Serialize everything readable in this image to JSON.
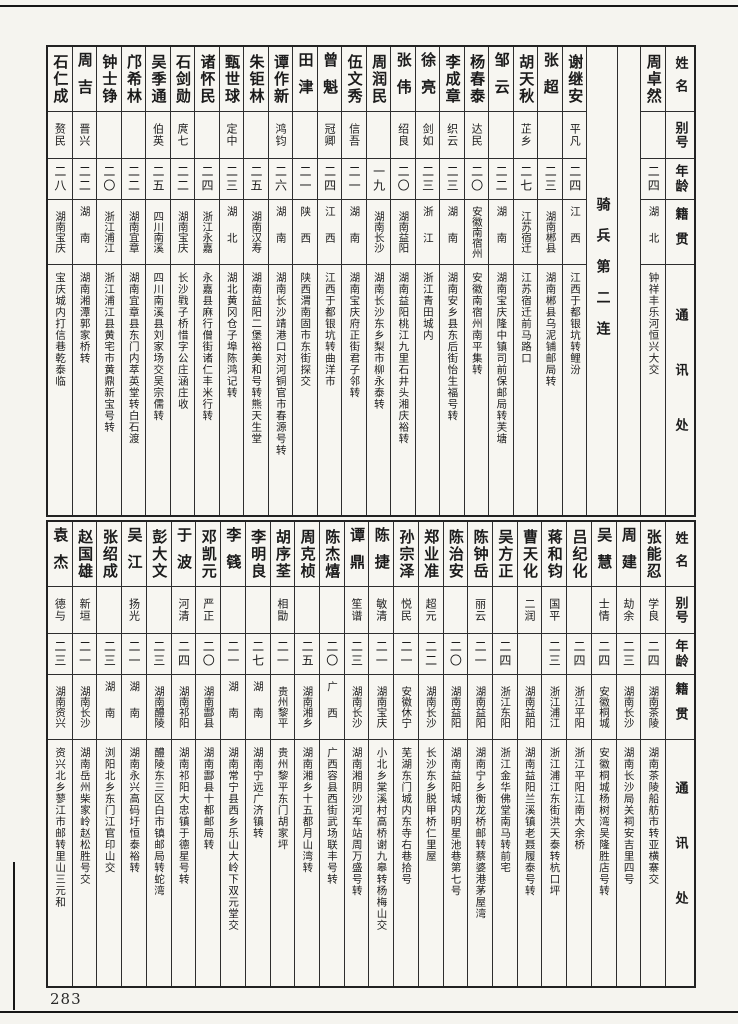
{
  "page": {
    "number": "283"
  },
  "headers": {
    "name": "姓名",
    "alias": "别号",
    "age": "年龄",
    "native": "籍贯",
    "address": "通讯处"
  },
  "section": {
    "label": "骑兵第二连"
  },
  "top_band": {
    "people": [
      {
        "name": "周卓然",
        "alias": "",
        "age": "二四",
        "native": "湖北",
        "address": "钟祥丰乐河恒兴大交"
      },
      {
        "name": "谢继安",
        "alias": "平凡",
        "age": "二四",
        "native": "江西",
        "address": "江西于都银坑转鲤汾"
      },
      {
        "name": "张超",
        "alias": "",
        "age": "二三",
        "native": "湖南郴县",
        "address": "湖南郴县乌泥铺邮局转"
      },
      {
        "name": "胡天秋",
        "alias": "芷乡",
        "age": "二七",
        "native": "江苏宿迁",
        "address": "江苏宿迁前马路口"
      },
      {
        "name": "邹云",
        "alias": "",
        "age": "二二",
        "native": "湖南",
        "address": "湖南宝庆隆中镇司前保邮局转芙塘"
      },
      {
        "name": "杨春泰",
        "alias": "达民",
        "age": "二〇",
        "native": "安徽南宿州",
        "address": "安徽南宿州南平集转"
      },
      {
        "name": "李成章",
        "alias": "织云",
        "age": "二三",
        "native": "湖南",
        "address": "湖南安乡县东后街怡生福号转"
      },
      {
        "name": "徐亮",
        "alias": "剑如",
        "age": "二三",
        "native": "浙江",
        "address": "浙江青田城内"
      },
      {
        "name": "张伟",
        "alias": "绍良",
        "age": "二〇",
        "native": "湖南益阳",
        "address": "湖南益阳桃江九里石井头湘庆裕转"
      },
      {
        "name": "周润民",
        "alias": "",
        "age": "一九",
        "native": "湖南长沙",
        "address": "湖南长沙东乡梨市柳永泰转"
      },
      {
        "name": "伍文秀",
        "alias": "信吾",
        "age": "二一",
        "native": "湖南",
        "address": "湖南宝庆府正街君子邻转"
      },
      {
        "name": "曾魁",
        "alias": "冠卿",
        "age": "二四",
        "native": "江西",
        "address": "江西于都银坑转曲洋市"
      },
      {
        "name": "田津",
        "alias": "",
        "age": "二一",
        "native": "陕西",
        "address": "陕西渭南固市东街探交"
      },
      {
        "name": "谭作新",
        "alias": "鸿钧",
        "age": "二六",
        "native": "湖南",
        "address": "湖南长沙靖港口对河铜官市春源号转"
      },
      {
        "name": "朱钜林",
        "alias": "",
        "age": "二五",
        "native": "湖南汉寿",
        "address": "湖南益阳二堡裕美和号转熊天生堂"
      },
      {
        "name": "甄世球",
        "alias": "定中",
        "age": "二三",
        "native": "湖北",
        "address": "湖北黄冈仓子埠陈鸿记转"
      },
      {
        "name": "诸怀民",
        "alias": "",
        "age": "二四",
        "native": "浙江永嘉",
        "address": "永嘉县麻行僧街诸仁丰米行转"
      },
      {
        "name": "石剑勋",
        "alias": "庹七",
        "age": "二二",
        "native": "湖南宝庆",
        "address": "长沙戥子桥惜字公庄涵庄收"
      },
      {
        "name": "吴季通",
        "alias": "伯英",
        "age": "二五",
        "native": "四川南溪",
        "address": "四川南溪县刘家场交吴宗儒转"
      },
      {
        "name": "邝希林",
        "alias": "",
        "age": "二二",
        "native": "湖南宜章",
        "address": "湖南宜章县东门内萃英堂转白石渡"
      },
      {
        "name": "钟士铮",
        "alias": "",
        "age": "二〇",
        "native": "浙江浦江",
        "address": "浙江浦江县黄宅市黄鼎新宝号转"
      },
      {
        "name": "周吉",
        "alias": "晋兴",
        "age": "二二",
        "native": "湖南",
        "address": "湖南湘潭郭家桥转"
      },
      {
        "name": "石仁成",
        "alias": "赘民",
        "age": "二八",
        "native": "湖南宝庆",
        "address": "宝庆城内打信巷乾泰临"
      }
    ]
  },
  "bottom_band": {
    "people": [
      {
        "name": "张能忍",
        "alias": "学良",
        "age": "二四",
        "native": "湖南茶陵",
        "address": "湖南茶陵船舫市转亚横寨交"
      },
      {
        "name": "周建",
        "alias": "劫余",
        "age": "二三",
        "native": "湖南长沙",
        "address": "湖南长沙局关祠安吉里四号"
      },
      {
        "name": "吴慧",
        "alias": "士情",
        "age": "二四",
        "native": "安徽桐城",
        "address": "安徽桐城杨树湾吴隆胜店号转"
      },
      {
        "name": "吕纪化",
        "alias": "",
        "age": "二四",
        "native": "浙江平阳",
        "address": "浙江平阳江南大余桥"
      },
      {
        "name": "蒋和钧",
        "alias": "国平",
        "age": "二三",
        "native": "浙江浦江",
        "address": "浙江浦江东街洪天泰转杭口坪"
      },
      {
        "name": "曹天化",
        "alias": "二润",
        "age": "",
        "native": "湖南益阳",
        "address": "湖南益阳兰溪镇老聂履泰号转"
      },
      {
        "name": "吴方正",
        "alias": "",
        "age": "二四",
        "native": "浙江东阳",
        "address": "浙江金华佛堂南马转前宅"
      },
      {
        "name": "陈钟岳",
        "alias": "丽云",
        "age": "二一",
        "native": "湖南益阳",
        "address": "湖南宁乡衡龙桥邮转蔡婆港茅屋湾"
      },
      {
        "name": "陈治安",
        "alias": "",
        "age": "二〇",
        "native": "湖南益阳",
        "address": "湖南益阳城内明星池巷第七号"
      },
      {
        "name": "郑业准",
        "alias": "超元",
        "age": "二二",
        "native": "湖南长沙",
        "address": "长沙东乡脱甲桥仁里屋"
      },
      {
        "name": "孙宗泽",
        "alias": "悦民",
        "age": "二一",
        "native": "安徽休宁",
        "address": "芜湖东门城内东寺右巷拾号"
      },
      {
        "name": "陈捷",
        "alias": "敏清",
        "age": "二一",
        "native": "湖南宝庆",
        "address": "小北乡棠溪村高桥谢九皋转杨梅山交"
      },
      {
        "name": "谭鼎",
        "alias": "笙谱",
        "age": "二三",
        "native": "湖南长沙",
        "address": "湖南湘阴沙河车站周万盛号转"
      },
      {
        "name": "陈杰熺",
        "alias": "",
        "age": "二〇",
        "native": "广西",
        "address": "广西容县西街武场联丰号转"
      },
      {
        "name": "周克桢",
        "alias": "",
        "age": "二五",
        "native": "湖南湘乡",
        "address": "湖南湘乡十五都月山湾转"
      },
      {
        "name": "胡序荃",
        "alias": "相勖",
        "age": "二一",
        "native": "贵州黎平",
        "address": "贵州黎平东门胡家坪"
      },
      {
        "name": "李明良",
        "alias": "",
        "age": "二七",
        "native": "湖南",
        "address": "湖南宁远广济镇转"
      },
      {
        "name": "李篯",
        "alias": "",
        "age": "二一",
        "native": "湖南",
        "address": "湖南常宁县西乡乐山大岭下双元堂交"
      },
      {
        "name": "邓凯元",
        "alias": "严正",
        "age": "二〇",
        "native": "湖南酃县",
        "address": "湖南酃县十都邮局转"
      },
      {
        "name": "于波",
        "alias": "河清",
        "age": "二四",
        "native": "湖南祁阳",
        "address": "湖南祁阳大忠镇于德星号转"
      },
      {
        "name": "彭大文",
        "alias": "",
        "age": "二三",
        "native": "湖南醴陵",
        "address": "醴陵东三区白市镇邮局转蛇湾"
      },
      {
        "name": "吴江",
        "alias": "扬光",
        "age": "二一",
        "native": "湖南",
        "address": "湖南永兴高码圩恒泰裕转"
      },
      {
        "name": "张绍成",
        "alias": "",
        "age": "二三",
        "native": "湖南",
        "address": "浏阳北乡东门江官印山交"
      },
      {
        "name": "赵国雄",
        "alias": "新垣",
        "age": "二一",
        "native": "湖南长沙",
        "address": "湖南岳州柴家岭赵松胜号交"
      },
      {
        "name": "袁杰",
        "alias": "德与",
        "age": "二三",
        "native": "湖南资兴",
        "address": "资兴北乡蓼江市邮转里山三元和"
      }
    ]
  }
}
